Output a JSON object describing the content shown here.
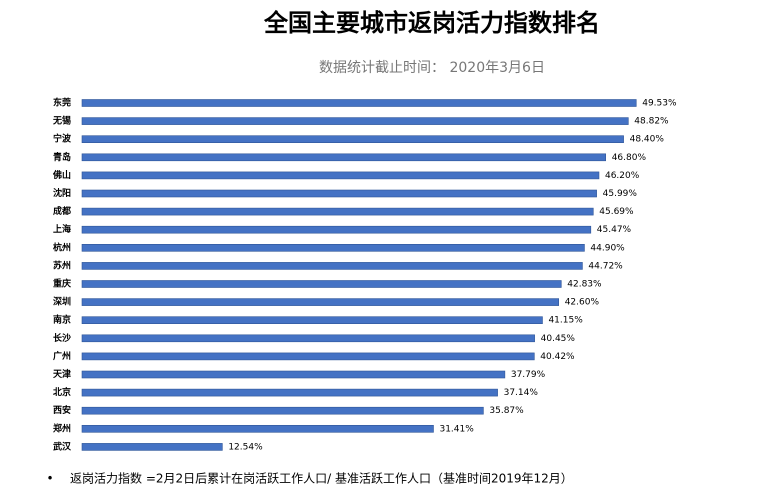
{
  "chart_data": {
    "type": "bar",
    "orientation": "horizontal",
    "title": "全国主要城市返岗活力指数排名",
    "subtitle": "数据统计截止时间： 2020年3月6日",
    "categories": [
      "东莞",
      "无锡",
      "宁波",
      "青岛",
      "佛山",
      "沈阳",
      "成都",
      "上海",
      "杭州",
      "苏州",
      "重庆",
      "深圳",
      "南京",
      "长沙",
      "广州",
      "天津",
      "北京",
      "西安",
      "郑州",
      "武汉"
    ],
    "values": [
      49.53,
      48.82,
      48.4,
      46.8,
      46.2,
      45.99,
      45.69,
      45.47,
      44.9,
      44.72,
      42.83,
      42.6,
      41.15,
      40.45,
      40.42,
      37.79,
      37.14,
      35.87,
      31.41,
      12.54
    ],
    "value_labels": [
      "49.53%",
      "48.82%",
      "48.40%",
      "46.80%",
      "46.20%",
      "45.99%",
      "45.69%",
      "45.47%",
      "44.90%",
      "44.72%",
      "42.83%",
      "42.60%",
      "41.15%",
      "40.45%",
      "40.42%",
      "37.79%",
      "37.14%",
      "35.87%",
      "31.41%",
      "12.54%"
    ],
    "color": "#4472c4",
    "footnote": "返岗活力指数 =2月2日后累计在岗活跃工作人口/ 基准活跃工作人口（基准时间2019年12月）"
  }
}
